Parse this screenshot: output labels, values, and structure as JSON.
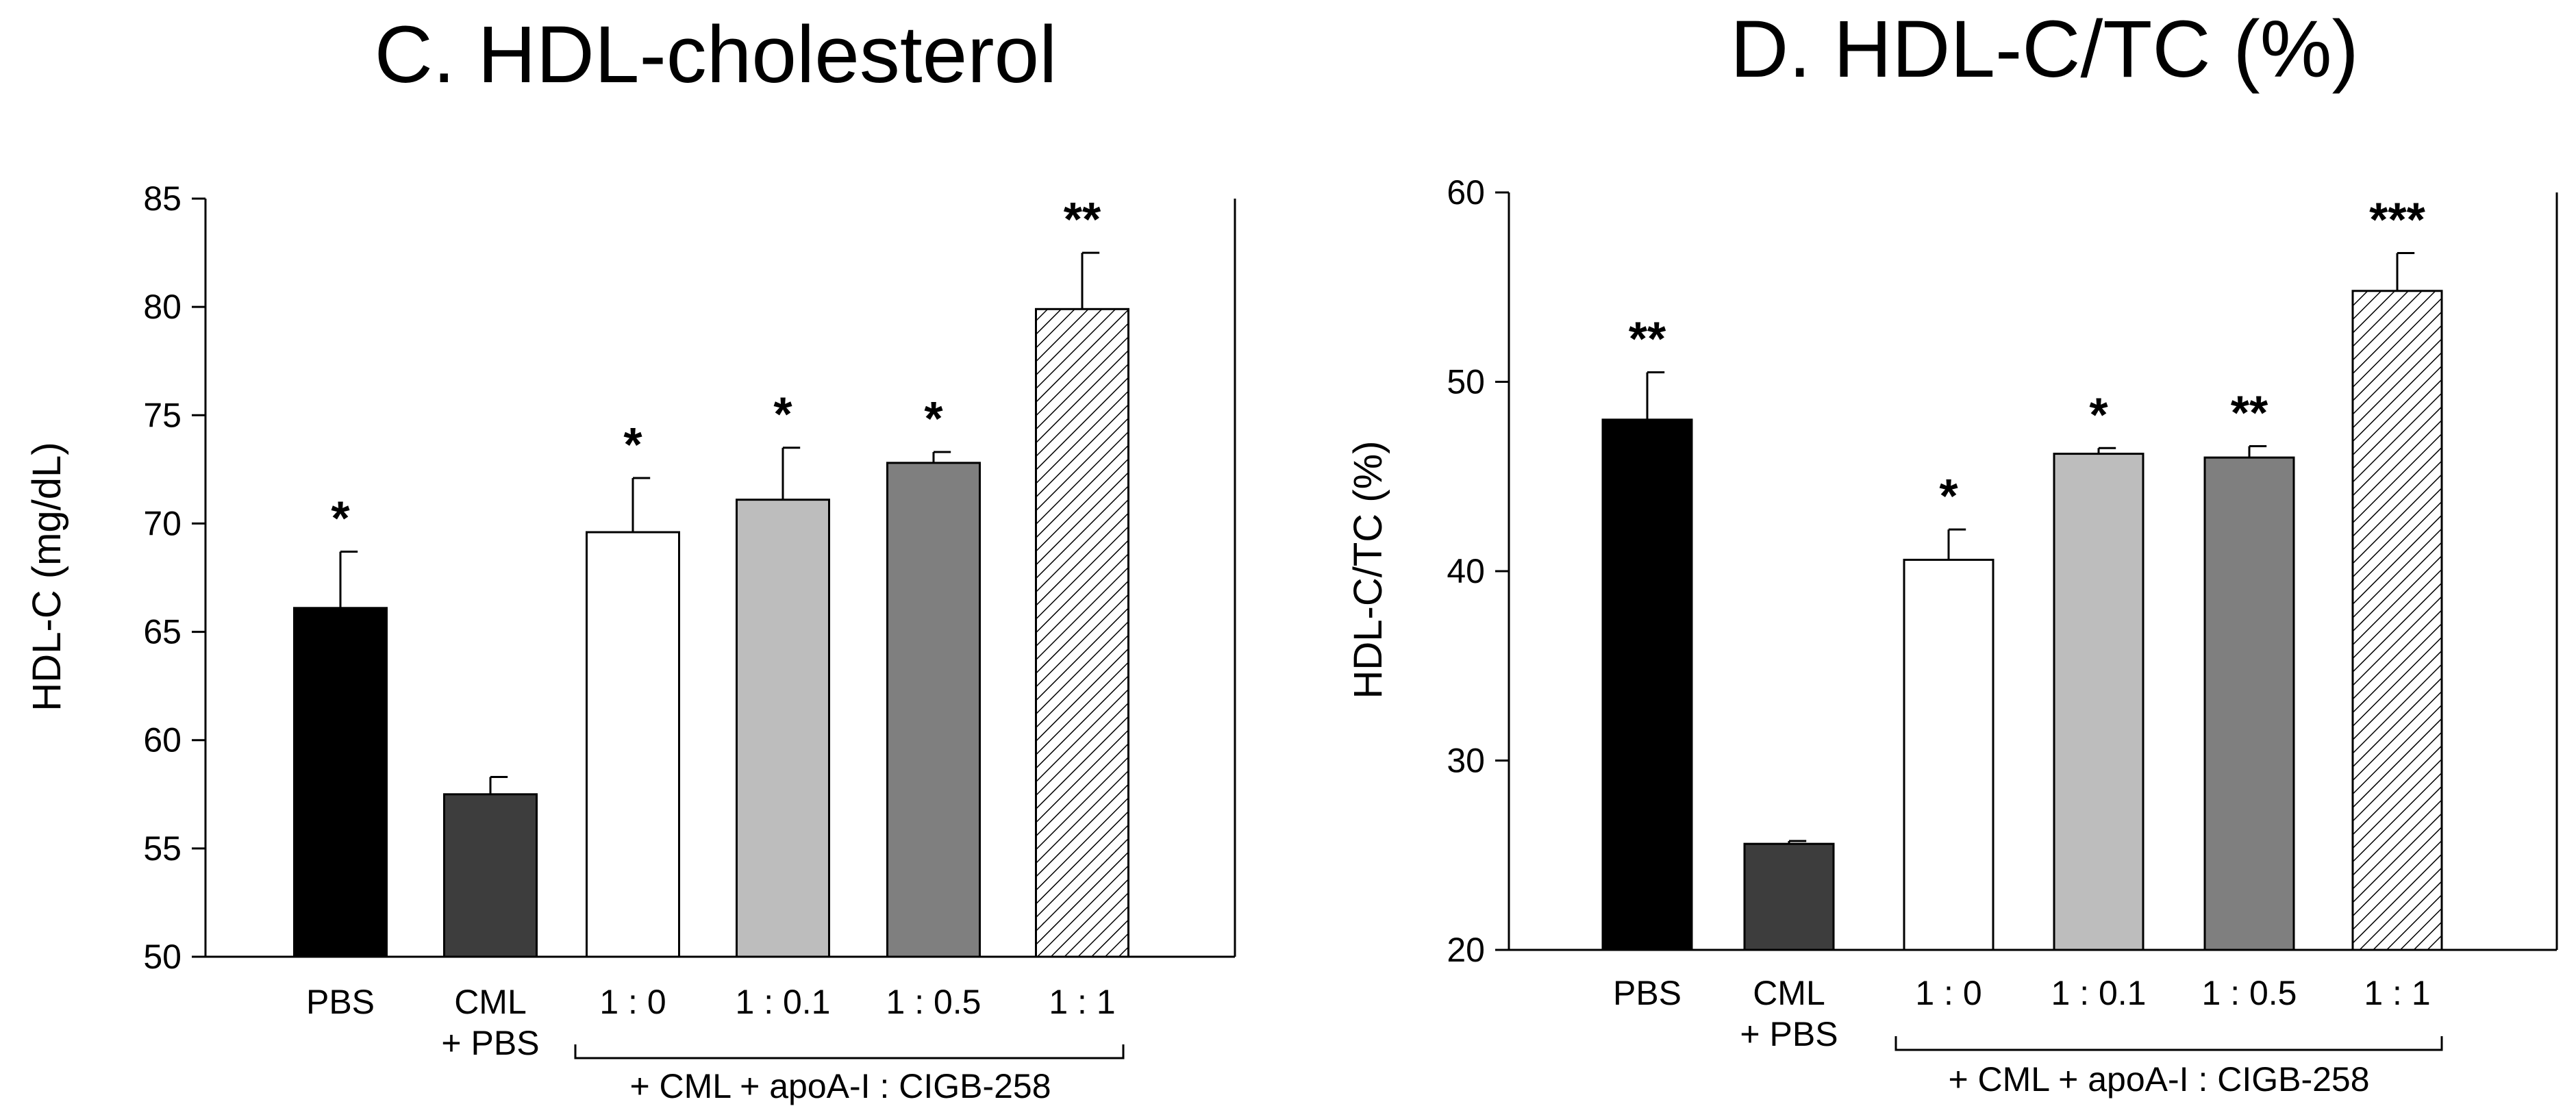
{
  "chart_data": [
    {
      "type": "bar",
      "title": "C. HDL-cholesterol",
      "ylabel": "HDL-C (mg/dL)",
      "ylim": [
        50,
        85
      ],
      "yticks": [
        50,
        55,
        60,
        65,
        70,
        75,
        80,
        85
      ],
      "categories": [
        "PBS",
        "CML\n+ PBS",
        "1 : 0",
        "1 : 0.1",
        "1 : 0.5",
        "1 : 1"
      ],
      "values": [
        66.1,
        57.5,
        69.6,
        71.1,
        72.8,
        79.9
      ],
      "errors": [
        2.6,
        0.8,
        2.5,
        2.4,
        0.5,
        2.6
      ],
      "significance": [
        "*",
        "",
        "*",
        "*",
        "*",
        "**"
      ],
      "bar_fills": [
        "#000000",
        "#3d3d3d",
        "#ffffff",
        "#bdbdbd",
        "#7f7f7f",
        "hatch"
      ],
      "group_label": "+ CML + apoA-I : CIGB-258"
    },
    {
      "type": "bar",
      "title": "D. HDL-C/TC (%)",
      "ylabel": "HDL-C/TC (%)",
      "ylim": [
        20,
        60
      ],
      "yticks": [
        20,
        30,
        40,
        50,
        60
      ],
      "categories": [
        "PBS",
        "CML\n+ PBS",
        "1 : 0",
        "1 : 0.1",
        "1 : 0.5",
        "1 : 1"
      ],
      "values": [
        48.0,
        25.6,
        40.6,
        46.2,
        46.0,
        54.8
      ],
      "errors": [
        2.5,
        0.15,
        1.6,
        0.3,
        0.6,
        2.0
      ],
      "significance": [
        "**",
        "",
        "*",
        "*",
        "**",
        "***"
      ],
      "bar_fills": [
        "#000000",
        "#3d3d3d",
        "#ffffff",
        "#bdbdbd",
        "#7f7f7f",
        "hatch"
      ],
      "group_label": "+ CML + apoA-I : CIGB-258"
    }
  ]
}
